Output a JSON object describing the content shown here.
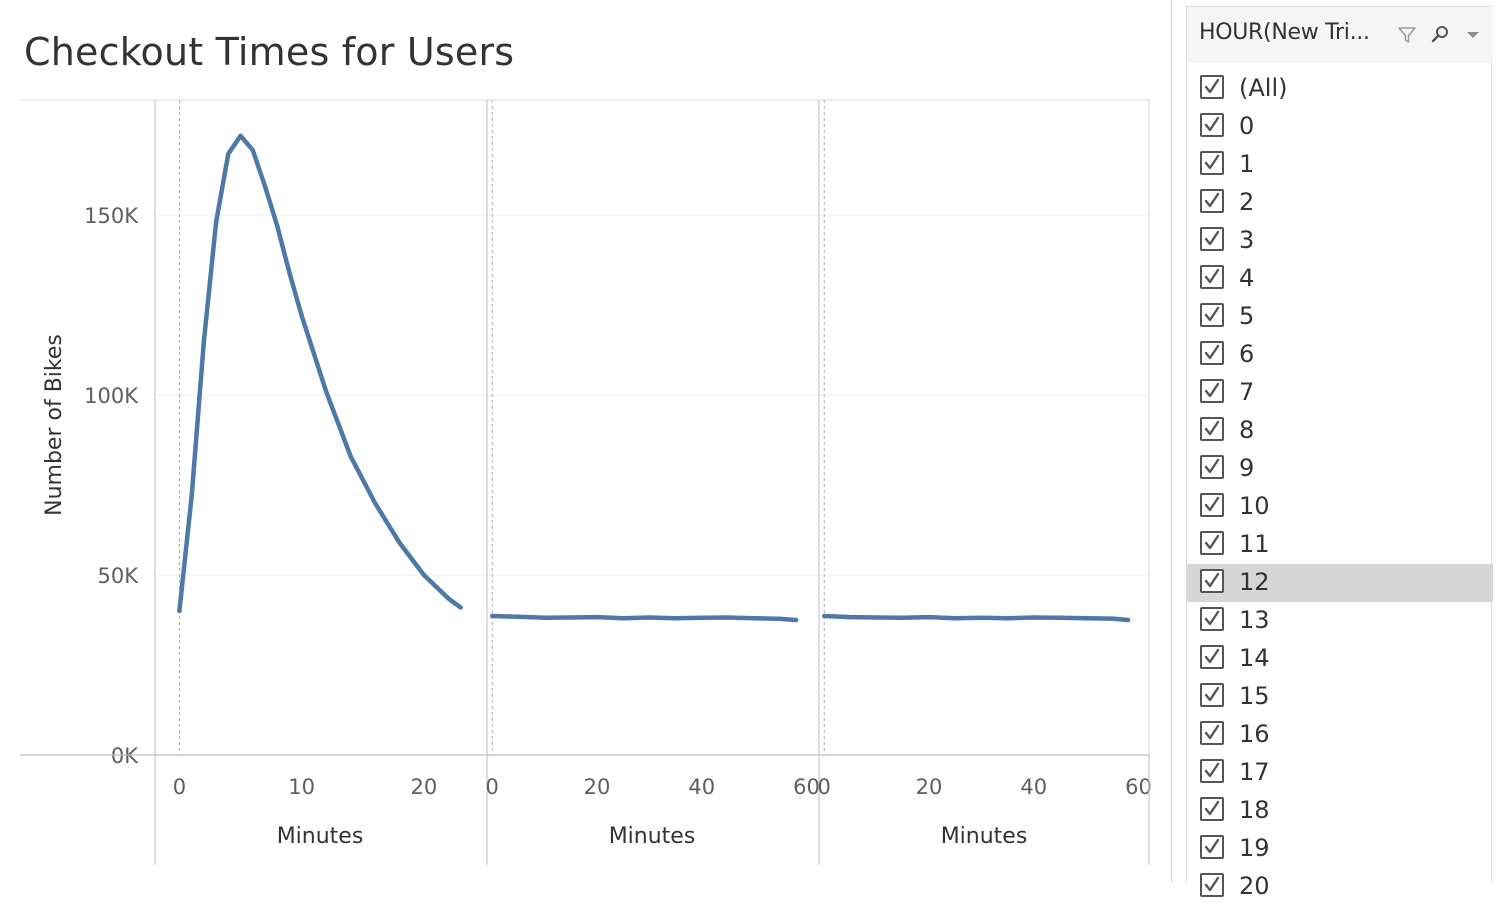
{
  "sheet": {
    "title": "Checkout Times for Users"
  },
  "chart_data": {
    "type": "line",
    "title": "Checkout Times for Users",
    "ylabel": "Number of Bikes",
    "ylim": [
      0,
      175000
    ],
    "yticks": [
      0,
      50000,
      100000,
      150000
    ],
    "ytick_labels": [
      "0K",
      "50K",
      "100K",
      "150K"
    ],
    "grid": true,
    "line_color": "#4e79a7",
    "panes": [
      {
        "xlabel": "Minutes",
        "xlim": [
          -2,
          25
        ],
        "xticks": [
          0,
          10,
          20
        ],
        "x": [
          0,
          1,
          2,
          3,
          4,
          5,
          6,
          7,
          8,
          9,
          10,
          12,
          14,
          16,
          18,
          20,
          22,
          23
        ],
        "y": [
          40000,
          72000,
          115000,
          148000,
          167000,
          172000,
          168000,
          158000,
          147000,
          134000,
          122000,
          101000,
          83000,
          70000,
          59000,
          50000,
          43500,
          41000
        ]
      },
      {
        "xlabel": "Minutes",
        "xlim": [
          -1,
          62
        ],
        "xticks": [
          0,
          20,
          40,
          60
        ],
        "x": [
          0,
          5,
          10,
          15,
          20,
          25,
          30,
          35,
          40,
          45,
          50,
          55,
          58
        ],
        "y": [
          38600,
          38400,
          38100,
          38200,
          38300,
          38000,
          38200,
          38000,
          38100,
          38200,
          38000,
          37800,
          37500
        ]
      },
      {
        "xlabel": "Minutes",
        "xlim": [
          -1,
          62
        ],
        "xticks": [
          0,
          20,
          40,
          60
        ],
        "x": [
          0,
          5,
          10,
          15,
          20,
          25,
          30,
          35,
          40,
          45,
          50,
          55,
          58
        ],
        "y": [
          38600,
          38300,
          38200,
          38100,
          38300,
          38000,
          38100,
          38000,
          38200,
          38100,
          38000,
          37900,
          37500
        ]
      }
    ]
  },
  "filter": {
    "title": "HOUR(New Tri...",
    "icons": [
      "filter-icon",
      "search-icon",
      "dropdown-caret-icon"
    ],
    "selected_value": "12",
    "items": [
      {
        "label": "(All)",
        "checked": true
      },
      {
        "label": "0",
        "checked": true
      },
      {
        "label": "1",
        "checked": true
      },
      {
        "label": "2",
        "checked": true
      },
      {
        "label": "3",
        "checked": true
      },
      {
        "label": "4",
        "checked": true
      },
      {
        "label": "5",
        "checked": true
      },
      {
        "label": "6",
        "checked": true
      },
      {
        "label": "7",
        "checked": true
      },
      {
        "label": "8",
        "checked": true
      },
      {
        "label": "9",
        "checked": true
      },
      {
        "label": "10",
        "checked": true
      },
      {
        "label": "11",
        "checked": true
      },
      {
        "label": "12",
        "checked": true
      },
      {
        "label": "13",
        "checked": true
      },
      {
        "label": "14",
        "checked": true
      },
      {
        "label": "15",
        "checked": true
      },
      {
        "label": "16",
        "checked": true
      },
      {
        "label": "17",
        "checked": true
      },
      {
        "label": "18",
        "checked": true
      },
      {
        "label": "19",
        "checked": true
      },
      {
        "label": "20",
        "checked": true
      }
    ]
  }
}
